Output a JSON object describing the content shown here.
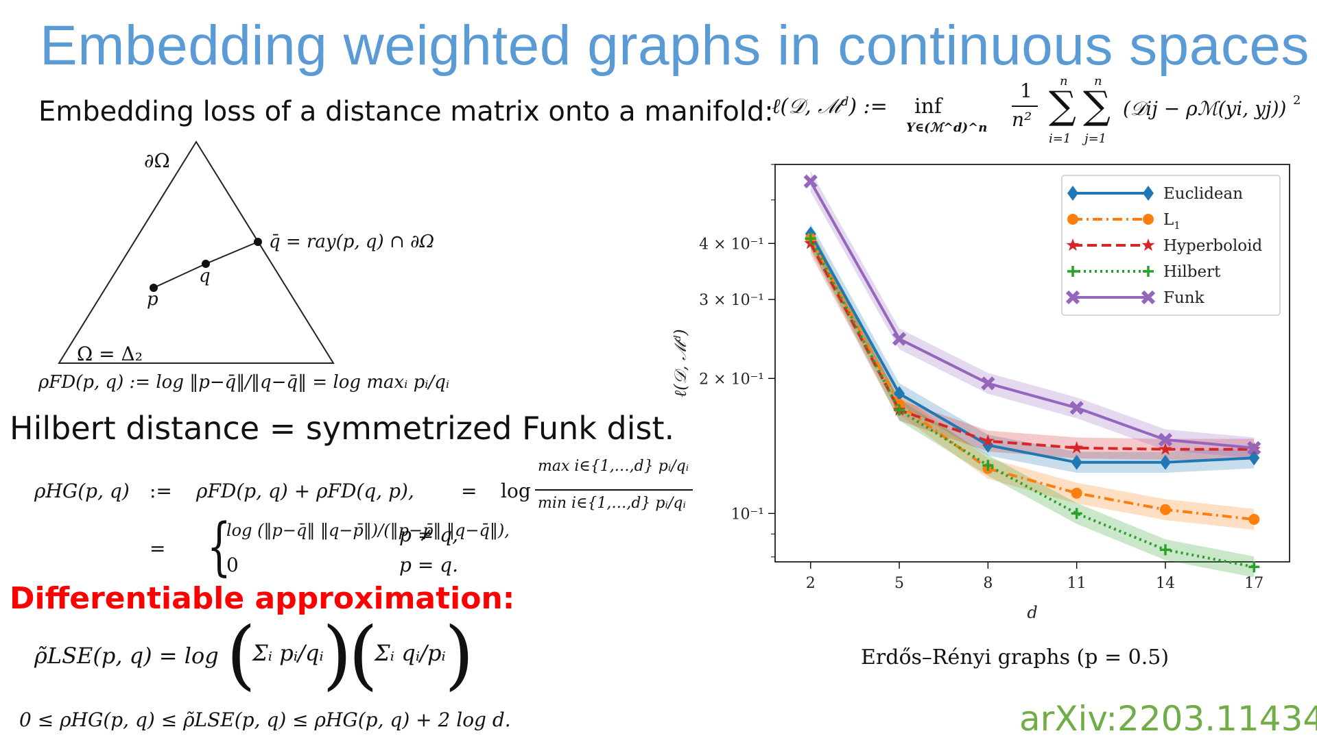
{
  "title": "Embedding weighted graphs in continuous spaces",
  "loss_label": "Embedding loss of a distance matrix onto a manifold:",
  "loss_formula": {
    "lhs": "ℓ(𝒟, ℳ",
    "lhs_sup": "d",
    "lhs_end": ") :=",
    "inf": "inf",
    "inf_sub": "Y∈(ℳ^d)^n",
    "one": "1",
    "n2": "n²",
    "sum_top": "n",
    "sum_bot1": "i=1",
    "sum_bot2": "j=1",
    "summand": "(𝒟ij − ρℳ(yi, yj))",
    "square": "2"
  },
  "triangle": {
    "boundary_label": "∂Ω",
    "qbar_label": "q̄ = ray(p, q) ∩ ∂Ω",
    "q_label": "q",
    "p_label": "p",
    "omega_label": "Ω = Δ₂",
    "funk_def": "ρFD(p, q) := log ‖p−q̄‖/‖q−q̄‖ = log maxᵢ pᵢ/qᵢ"
  },
  "hilbert_heading": "Hilbert distance = symmetrized Funk dist.",
  "hilbert_formula": {
    "row1_lhs": "ρHG(p, q)",
    "row1_def": ":=",
    "row1_rhs": "ρFD(p, q) + ρFD(q, p),",
    "row1_eq": "=",
    "row1_log": "log",
    "row1_num": "max i∈{1,…,d} pᵢ/qᵢ",
    "row1_den": "min i∈{1,…,d} pᵢ/qᵢ",
    "row2_eq": "=",
    "case1_expr": "log (‖p−q̄‖ ‖q−p̄‖)/(‖p−p̄‖ ‖q−q̄‖),",
    "case1_cond": "p ≠ q,",
    "case2_expr": "0",
    "case2_cond": "p = q."
  },
  "diff_heading": "Differentiable approximation:",
  "lse_formula": {
    "lhs": "ρ̃LSE(p, q) = log",
    "sum1": "Σᵢ pᵢ/qᵢ",
    "sum2": "Σᵢ qᵢ/pᵢ"
  },
  "bound": "0 ≤ ρHG(p, q) ≤ ρ̃LSE(p, q) ≤ ρHG(p, q) + 2 log d.",
  "caption": "Erdős–Rényi graphs (p = 0.5)",
  "arxiv": "arXiv:2203.11434",
  "chart_data": {
    "type": "line",
    "x": [
      2,
      5,
      8,
      11,
      14,
      17
    ],
    "xlabel": "d",
    "ylabel": "ℓ(𝒟, ℳᵈ)",
    "yscale": "log",
    "ylim": [
      0.078,
      0.6
    ],
    "ytick_labels": [
      "10⁻¹",
      "2 × 10⁻¹",
      "3 × 10⁻¹",
      "4 × 10⁻¹"
    ],
    "ytick_values": [
      0.1,
      0.2,
      0.3,
      0.4
    ],
    "xtick_labels": [
      "2",
      "5",
      "8",
      "11",
      "14",
      "17"
    ],
    "legend_position": "top-right",
    "grid": false,
    "series": [
      {
        "name": "Euclidean",
        "color": "#1f77b4",
        "dash": "solid",
        "marker": "diamond",
        "values": [
          0.42,
          0.185,
          0.142,
          0.13,
          0.13,
          0.133
        ]
      },
      {
        "name": "L",
        "name_sub": "1",
        "color": "#ff7f0e",
        "dash": "dashdot",
        "marker": "circle",
        "values": [
          0.41,
          0.175,
          0.126,
          0.111,
          0.102,
          0.097
        ]
      },
      {
        "name": "Hyperboloid",
        "color": "#d62728",
        "dash": "dashed",
        "marker": "star",
        "values": [
          0.4,
          0.17,
          0.145,
          0.14,
          0.139,
          0.139
        ]
      },
      {
        "name": "Hilbert",
        "color": "#2ca02c",
        "dash": "dotted",
        "marker": "plus",
        "values": [
          0.41,
          0.17,
          0.128,
          0.1,
          0.083,
          0.076
        ]
      },
      {
        "name": "Funk",
        "color": "#9467bd",
        "dash": "solid",
        "marker": "x",
        "values": [
          0.55,
          0.245,
          0.195,
          0.172,
          0.146,
          0.14
        ]
      }
    ]
  }
}
